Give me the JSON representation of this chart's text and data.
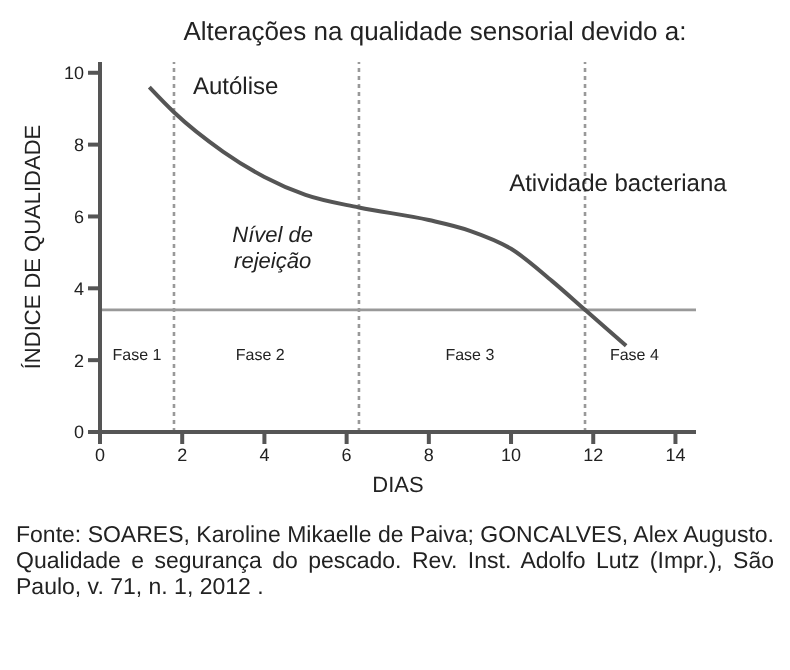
{
  "chart_data": {
    "type": "line",
    "title": "Alterações na qualidade sensorial devido a:",
    "xlabel": "DIAS",
    "ylabel": "ÍNDICE DE QUALIDADE",
    "x": [
      1.2,
      1.8,
      3,
      4,
      5,
      6.3,
      8,
      9,
      10,
      11,
      11.8,
      12.8
    ],
    "series": [
      {
        "color": "#555555",
        "values": [
          9.6,
          8.9,
          7.8,
          7.1,
          6.6,
          6.25,
          5.9,
          5.6,
          5.1,
          4.2,
          3.4,
          2.4
        ]
      }
    ],
    "xlim": [
      0,
      14.5
    ],
    "xticks": [
      0,
      2,
      4,
      6,
      8,
      10,
      12,
      14
    ],
    "ylim": [
      0,
      10.3
    ],
    "yticks": [
      0,
      2,
      4,
      6,
      8,
      10
    ],
    "grid": false,
    "marker": "none",
    "line_style": "solid",
    "ref_lines": [
      {
        "axis": "y",
        "value": 3.4,
        "color": "#999999",
        "line_style": "solid"
      },
      {
        "axis": "x",
        "value": 1.8,
        "color": "#999999",
        "line_style": "dotted"
      },
      {
        "axis": "x",
        "value": 6.3,
        "color": "#999999",
        "line_style": "dotted"
      },
      {
        "axis": "x",
        "value": 11.8,
        "color": "#999999",
        "line_style": "dotted"
      }
    ],
    "annotations": [
      "Autólise",
      "Atividade bacteriana",
      "Nível de\nrejeição",
      "Fase 1",
      "Fase 2",
      "Fase 3",
      "Fase 4",
      "Fonte: SOARES, Karoline Mikaelle de Paiva; GONCALVES, Alex Augusto. Qualidade e segurança do pescado. Rev. Inst. Adolfo Lutz (Impr.), São Paulo, v. 71, n. 1, 2012 ."
    ]
  }
}
